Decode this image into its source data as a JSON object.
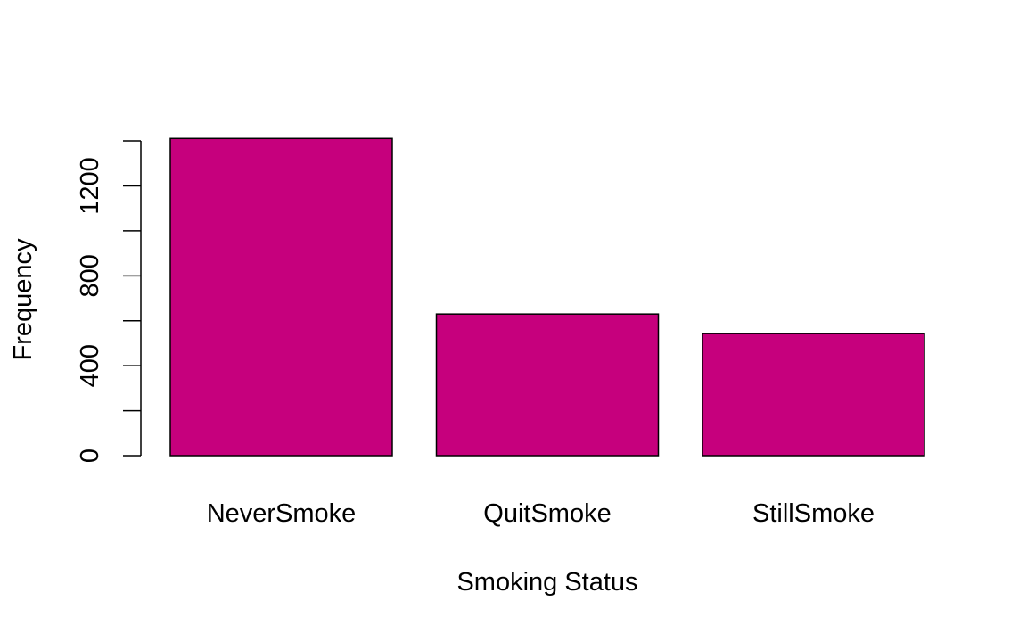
{
  "chart_data": {
    "type": "bar",
    "title": "",
    "xlabel": "Smoking Status",
    "ylabel": "Frequency",
    "categories": [
      "NeverSmoke",
      "QuitSmoke",
      "StillSmoke"
    ],
    "values": [
      1411,
      630,
      543
    ],
    "ylim": [
      0,
      1400
    ],
    "yticks": [
      0,
      200,
      400,
      600,
      800,
      1000,
      1200,
      1400
    ],
    "ytick_labels": [
      "0",
      "",
      "400",
      "",
      "800",
      "",
      "1200",
      ""
    ],
    "bar_color": "#C6007D",
    "bar_border_color": "#000000",
    "grid": false,
    "legend": "none"
  }
}
